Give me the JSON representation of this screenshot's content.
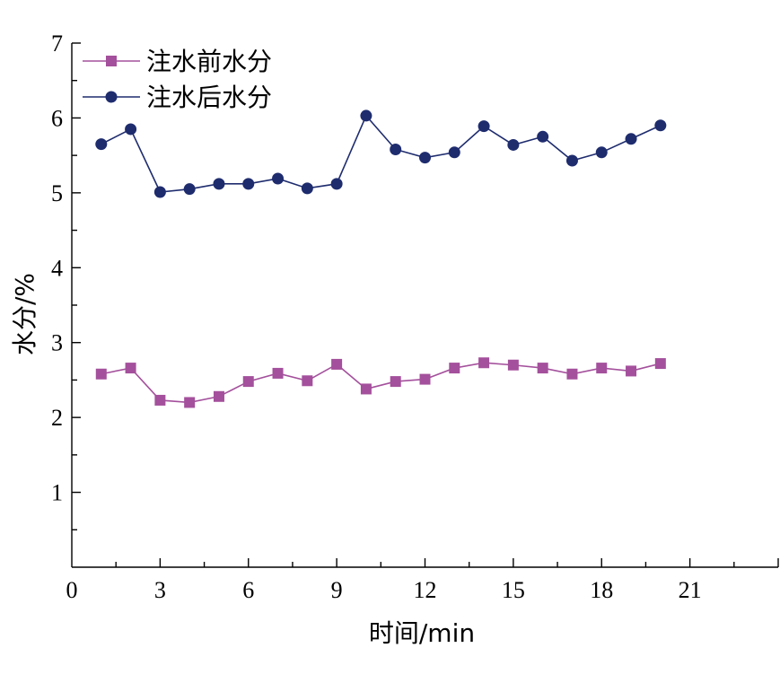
{
  "chart_data": {
    "type": "line",
    "xlabel": "时间/min",
    "ylabel": "水分/%",
    "xlim": [
      0,
      24
    ],
    "ylim": [
      0,
      7
    ],
    "x_ticks": [
      0,
      3,
      6,
      9,
      12,
      15,
      18,
      21
    ],
    "y_ticks": [
      1,
      2,
      3,
      4,
      5,
      6,
      7
    ],
    "x_minor_step": 1.5,
    "y_minor_step": 0.5,
    "grid": false,
    "legend_position": "top-left",
    "x": [
      1,
      2,
      3,
      4,
      5,
      6,
      7,
      8,
      9,
      10,
      11,
      12,
      13,
      14,
      15,
      16,
      17,
      18,
      19,
      20
    ],
    "series": [
      {
        "name": "注水前水分",
        "marker": "square",
        "color": "#a4509c",
        "values": [
          2.58,
          2.66,
          2.23,
          2.2,
          2.28,
          2.48,
          2.59,
          2.49,
          2.71,
          2.38,
          2.48,
          2.51,
          2.66,
          2.73,
          2.7,
          2.66,
          2.58,
          2.66,
          2.62,
          2.72
        ]
      },
      {
        "name": "注水后水分",
        "marker": "circle",
        "color": "#1e2c6e",
        "values": [
          5.65,
          5.85,
          5.01,
          5.05,
          5.12,
          5.12,
          5.19,
          5.06,
          5.12,
          6.03,
          5.58,
          5.47,
          5.54,
          5.89,
          5.64,
          5.75,
          5.43,
          5.54,
          5.72,
          5.9
        ]
      }
    ]
  }
}
